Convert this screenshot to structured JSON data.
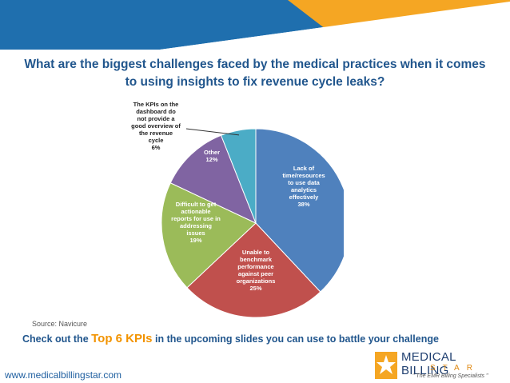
{
  "title": {
    "line1": "What are the biggest challenges faced by the medical practices when it comes",
    "line2": "to using insights to fix revenue cycle leaks?"
  },
  "source": "Source: Navicure",
  "cta": {
    "prefix": "Check out the ",
    "highlight": "Top 6 KPIs",
    "suffix": " in the upcoming slides you can use to battle your challenge"
  },
  "website": "www.medicalbillingstar.com",
  "logo": {
    "name": "MEDICAL BILLING",
    "star": "STAR",
    "tagline": "\" The EMR Billing Specialists \""
  },
  "colors": {
    "banner_blue": "#1f6fae",
    "banner_orange": "#f5a623",
    "title": "#21568d",
    "highlight": "#f29300"
  },
  "chart_data": {
    "type": "pie",
    "title": "",
    "slices": [
      {
        "label_lines": [
          "Lack of",
          "time/resources",
          "to use data",
          "analytics",
          "effectively",
          "38%"
        ],
        "value": 38,
        "color": "#4f81bd",
        "text_color": "#ffffff"
      },
      {
        "label_lines": [
          "Unable to",
          "benchmark",
          "performance",
          "against peer",
          "organizations",
          "25%"
        ],
        "value": 25,
        "color": "#c0504d",
        "text_color": "#ffffff"
      },
      {
        "label_lines": [
          "Difficult to get",
          "actionable",
          "reports for use in",
          "addressing",
          "issues",
          "19%"
        ],
        "value": 19,
        "color": "#9bbb59",
        "text_color": "#ffffff"
      },
      {
        "label_lines": [
          "Other",
          "12%"
        ],
        "value": 12,
        "color": "#8064a2",
        "text_color": "#ffffff"
      },
      {
        "label_lines": [
          "The KPIs on the",
          "dashboard do",
          "not provide a",
          "good overview of",
          "the revenue",
          "cycle",
          "6%"
        ],
        "value": 6,
        "color": "#4bacc6",
        "text_color": "#222222",
        "callout": true
      }
    ]
  }
}
